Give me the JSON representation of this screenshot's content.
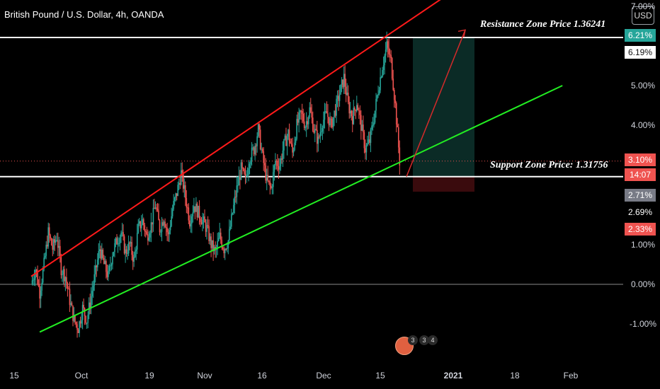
{
  "header": {
    "title": "British Pound / U.S. Dollar, 4h, OANDA",
    "currency_button": "USD"
  },
  "annotations": {
    "resistance": "Resistance Zone Price 1.36241",
    "support": "Support Zone Price: 1.31756"
  },
  "price_tags": {
    "resistance_pct": "6.21%",
    "resistance_alt": "6.19%",
    "current_pct": "3.10%",
    "countdown": "14:07",
    "support_pct": "2.71%",
    "support_alt": "2.69%",
    "stop_pct": "2.33%"
  },
  "events": {
    "counts": [
      "3",
      "3",
      "4"
    ]
  },
  "chart_data": {
    "type": "candlestick",
    "title": "British Pound / U.S. Dollar, 4h, OANDA",
    "y_unit": "percent change",
    "ylim": [
      -1.4,
      7.0
    ],
    "y_ticks": [
      "7.00%",
      "5.00%",
      "4.00%",
      "1.00%",
      "0.00%",
      "-1.00%"
    ],
    "x_ticks": [
      "15",
      "Oct",
      "19",
      "Nov",
      "16",
      "Dec",
      "15",
      "2021",
      "18",
      "Feb"
    ],
    "series": [
      {
        "close_path": [
          [
            0,
            0.0
          ],
          [
            1,
            0.4
          ],
          [
            2,
            -0.2
          ],
          [
            3,
            0.5
          ],
          [
            4,
            1.3
          ],
          [
            5,
            0.9
          ],
          [
            6,
            1.2
          ],
          [
            7,
            0.4
          ],
          [
            8,
            0.2
          ],
          [
            9,
            -0.4
          ],
          [
            10,
            -0.9
          ],
          [
            11,
            -1.1
          ],
          [
            12,
            -0.6
          ],
          [
            13,
            -0.9
          ],
          [
            14,
            -0.3
          ],
          [
            15,
            0.3
          ],
          [
            16,
            0.9
          ],
          [
            17,
            0.5
          ],
          [
            18,
            0.2
          ],
          [
            19,
            0.8
          ],
          [
            20,
            1.1
          ],
          [
            21,
            1.3
          ],
          [
            22,
            0.8
          ],
          [
            23,
            1.0
          ],
          [
            24,
            0.6
          ],
          [
            25,
            1.4
          ],
          [
            26,
            1.6
          ],
          [
            27,
            1.2
          ],
          [
            28,
            1.5
          ],
          [
            29,
            2.0
          ],
          [
            30,
            1.4
          ],
          [
            31,
            1.7
          ],
          [
            32,
            1.2
          ],
          [
            33,
            1.9
          ],
          [
            34,
            2.3
          ],
          [
            35,
            2.8
          ],
          [
            36,
            2.2
          ],
          [
            37,
            1.6
          ],
          [
            38,
            2.0
          ],
          [
            39,
            1.8
          ],
          [
            40,
            1.6
          ],
          [
            41,
            1.4
          ],
          [
            42,
            1.0
          ],
          [
            43,
            0.8
          ],
          [
            44,
            1.2
          ],
          [
            45,
            0.9
          ],
          [
            46,
            1.1
          ],
          [
            47,
            1.8
          ],
          [
            48,
            2.4
          ],
          [
            49,
            2.9
          ],
          [
            50,
            2.6
          ],
          [
            51,
            3.2
          ],
          [
            52,
            3.4
          ],
          [
            53,
            3.9
          ],
          [
            54,
            3.2
          ],
          [
            55,
            2.6
          ],
          [
            56,
            2.4
          ],
          [
            57,
            3.1
          ],
          [
            58,
            3.0
          ],
          [
            59,
            3.5
          ],
          [
            60,
            3.8
          ],
          [
            61,
            3.3
          ],
          [
            62,
            4.0
          ],
          [
            63,
            4.3
          ],
          [
            64,
            4.0
          ],
          [
            65,
            4.4
          ],
          [
            66,
            3.9
          ],
          [
            67,
            3.6
          ],
          [
            68,
            4.1
          ],
          [
            69,
            4.3
          ],
          [
            70,
            4.0
          ],
          [
            71,
            4.4
          ],
          [
            72,
            4.8
          ],
          [
            73,
            5.2
          ],
          [
            74,
            4.5
          ],
          [
            75,
            4.2
          ],
          [
            76,
            4.6
          ],
          [
            77,
            4.0
          ],
          [
            78,
            3.4
          ],
          [
            79,
            3.6
          ],
          [
            80,
            4.2
          ],
          [
            81,
            4.9
          ],
          [
            82,
            5.5
          ],
          [
            83,
            6.0
          ],
          [
            84,
            5.6
          ],
          [
            85,
            4.5
          ],
          [
            86,
            3.1
          ]
        ]
      }
    ],
    "levels": [
      {
        "name": "Resistance Zone Price 1.36241",
        "value": 6.21
      },
      {
        "name": "Support Zone Price: 1.31756",
        "value": 2.71
      },
      {
        "name": "zero",
        "value": 0.0
      }
    ],
    "channel": {
      "upper": [
        [
          0,
          0.2
        ],
        [
          96,
          7.2
        ]
      ],
      "lower": [
        [
          2,
          -1.2
        ],
        [
          124,
          5.0
        ]
      ]
    },
    "projection": {
      "from": [
        86,
        2.71
      ],
      "to": [
        100,
        6.4
      ]
    },
    "position": {
      "entry": 2.71,
      "target": 6.21,
      "stop": 2.33
    },
    "current_price_pct": 3.1,
    "colors": {
      "background": "#000000",
      "up": "#26a69a",
      "down": "#ef5350",
      "resistance_trend": "#ff1a1a",
      "support_trend": "#22ee22",
      "projection": "#d42a2a",
      "profit_zone": "#0b2b26",
      "loss_zone": "#3a0b0d",
      "level_line": "#ffffff"
    }
  }
}
